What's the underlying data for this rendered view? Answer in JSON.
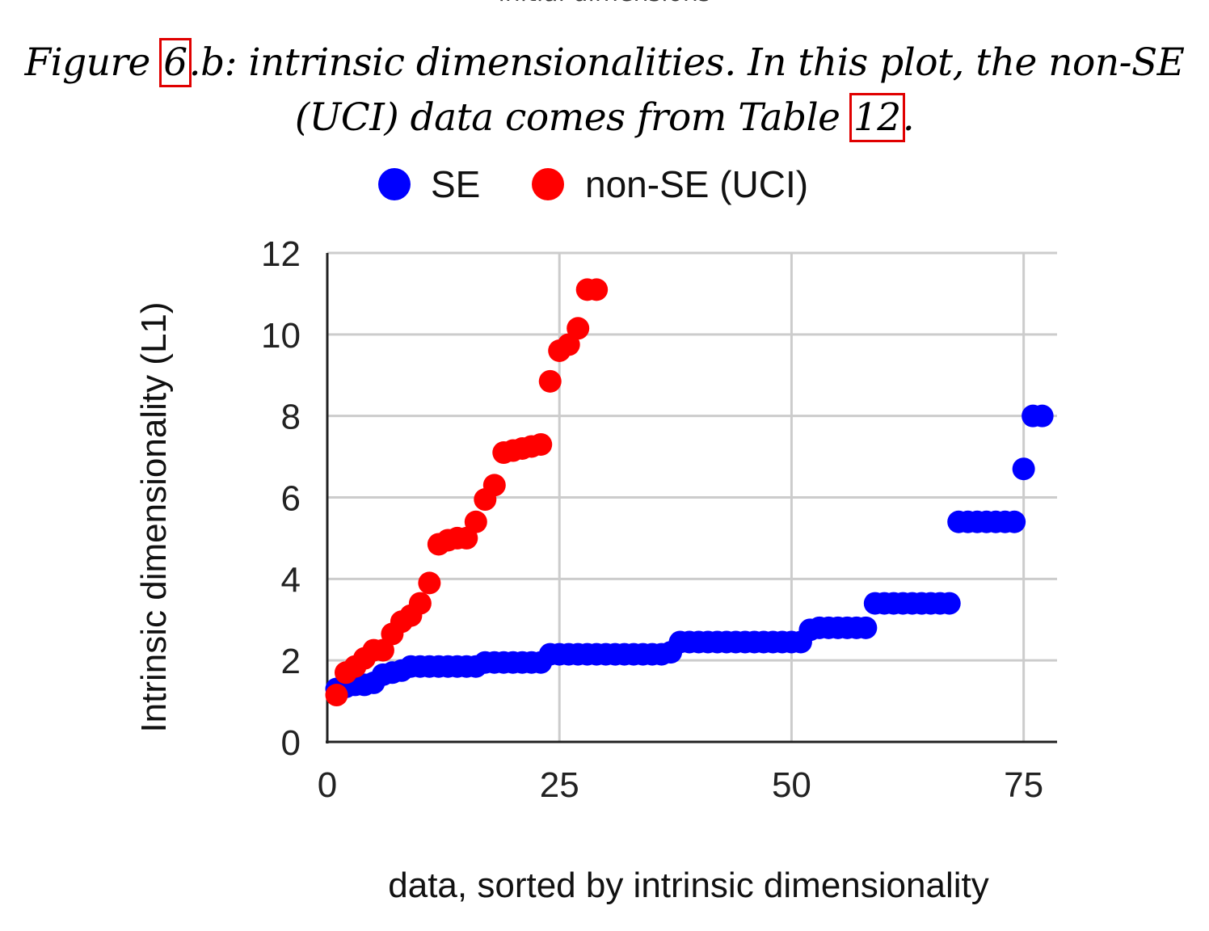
{
  "header_cut": "initial dimensions",
  "caption": {
    "part1": "Figure ",
    "ref1": "6",
    "part2": ".b: intrinsic dimensionalities. In this plot, the non-SE",
    "part3": "(UCI) data comes from Table ",
    "ref2": "12",
    "part4": "."
  },
  "chart_data": {
    "type": "scatter",
    "title": "",
    "xlabel": "data, sorted by intrinsic dimensionality",
    "ylabel": "Intrinsic dimensionality (L1)",
    "xlim": [
      0,
      78
    ],
    "ylim": [
      0,
      12
    ],
    "xticks": [
      0,
      25,
      50,
      75
    ],
    "yticks": [
      0,
      2,
      4,
      6,
      8,
      10,
      12
    ],
    "grid": true,
    "legend_position": "top",
    "series": [
      {
        "name": "SE",
        "color": "#0000ff",
        "x": [
          1,
          2,
          3,
          4,
          5,
          6,
          7,
          8,
          9,
          10,
          11,
          12,
          13,
          14,
          15,
          16,
          17,
          18,
          19,
          20,
          21,
          22,
          23,
          24,
          25,
          26,
          27,
          28,
          29,
          30,
          31,
          32,
          33,
          34,
          35,
          36,
          37,
          38,
          39,
          40,
          41,
          42,
          43,
          44,
          45,
          46,
          47,
          48,
          49,
          50,
          51,
          52,
          53,
          54,
          55,
          56,
          57,
          58,
          59,
          60,
          61,
          62,
          63,
          64,
          65,
          66,
          67,
          68,
          69,
          70,
          71,
          72,
          73,
          74,
          75,
          76,
          77
        ],
        "y": [
          1.3,
          1.35,
          1.4,
          1.4,
          1.45,
          1.65,
          1.7,
          1.75,
          1.85,
          1.85,
          1.85,
          1.85,
          1.85,
          1.85,
          1.85,
          1.85,
          1.95,
          1.95,
          1.95,
          1.95,
          1.95,
          1.95,
          1.95,
          2.15,
          2.15,
          2.15,
          2.15,
          2.15,
          2.15,
          2.15,
          2.15,
          2.15,
          2.15,
          2.15,
          2.15,
          2.15,
          2.2,
          2.45,
          2.45,
          2.45,
          2.45,
          2.45,
          2.45,
          2.45,
          2.45,
          2.45,
          2.45,
          2.45,
          2.45,
          2.45,
          2.45,
          2.75,
          2.8,
          2.8,
          2.8,
          2.8,
          2.8,
          2.8,
          3.4,
          3.4,
          3.4,
          3.4,
          3.4,
          3.4,
          3.4,
          3.4,
          3.4,
          5.4,
          5.4,
          5.4,
          5.4,
          5.4,
          5.4,
          5.4,
          6.7,
          8.0,
          8.0
        ]
      },
      {
        "name": "non-SE (UCI)",
        "color": "#ff0000",
        "x": [
          1,
          2,
          3,
          4,
          5,
          6,
          7,
          8,
          9,
          10,
          11,
          12,
          13,
          14,
          15,
          16,
          17,
          18,
          19,
          20,
          21,
          22,
          23,
          24,
          25,
          26,
          27,
          28,
          29
        ],
        "y": [
          1.15,
          1.7,
          1.85,
          2.05,
          2.25,
          2.25,
          2.65,
          2.95,
          3.1,
          3.4,
          3.9,
          4.85,
          4.95,
          5.0,
          5.0,
          5.4,
          5.95,
          6.3,
          7.1,
          7.15,
          7.2,
          7.25,
          7.3,
          8.85,
          9.6,
          9.75,
          10.15,
          11.1,
          11.1
        ]
      }
    ]
  }
}
